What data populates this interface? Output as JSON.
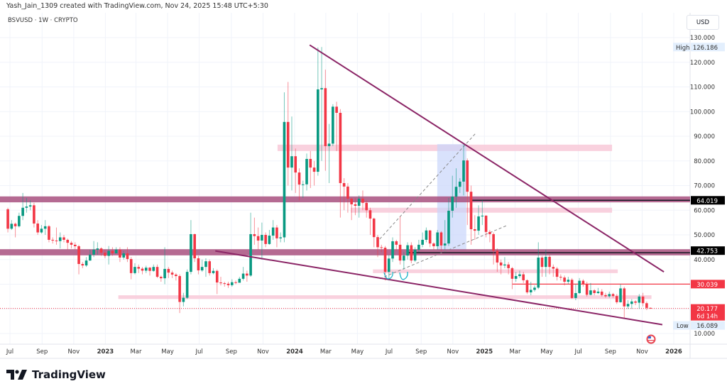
{
  "header": {
    "credit": "Yash_Jain_1309 created with TradingView.com, Nov 24, 2025 15:48 UTC+5:30",
    "symbol": "BSVUSD · 1W · CRYPTO",
    "currency_button": "USD"
  },
  "footer": {
    "brand": "TradingView"
  },
  "icons": {
    "logo": "tradingview-logo-icon",
    "event_marker": "us-flag-icon"
  },
  "colors": {
    "up": "#089981",
    "down": "#f23645",
    "band": "#a8507f",
    "zone": "#f8c9d8",
    "trendline": "#8b2566",
    "selection": "#c9d6fb",
    "last_price": "#f23645"
  },
  "chart_data": {
    "type": "candlestick",
    "interval": "1W",
    "first_candle": "2022-06-27",
    "last_candle": "2025-11-17",
    "ylim": [
      5,
      135
    ],
    "y_ticks": [
      "130.000",
      "120.000",
      "110.000",
      "100.000",
      "90.000",
      "80.000",
      "70.000",
      "60.000",
      "50.000",
      "40.000",
      "10.000"
    ],
    "y_tick_values": [
      130,
      120,
      110,
      100,
      90,
      80,
      70,
      60,
      50,
      40,
      10
    ],
    "x_ticks": [
      {
        "label": "Jul",
        "date": "2022-07-01"
      },
      {
        "label": "Sep",
        "date": "2022-09-01"
      },
      {
        "label": "Nov",
        "date": "2022-11-01"
      },
      {
        "label": "2023",
        "date": "2023-01-01",
        "bold": true
      },
      {
        "label": "Mar",
        "date": "2023-03-01"
      },
      {
        "label": "May",
        "date": "2023-05-01"
      },
      {
        "label": "Jul",
        "date": "2023-07-01"
      },
      {
        "label": "Sep",
        "date": "2023-09-01"
      },
      {
        "label": "Nov",
        "date": "2023-11-01"
      },
      {
        "label": "2024",
        "date": "2024-01-01",
        "bold": true
      },
      {
        "label": "Mar",
        "date": "2024-03-01"
      },
      {
        "label": "May",
        "date": "2024-05-01"
      },
      {
        "label": "Jul",
        "date": "2024-07-01"
      },
      {
        "label": "Sep",
        "date": "2024-09-01"
      },
      {
        "label": "Nov",
        "date": "2024-11-01"
      },
      {
        "label": "2025",
        "date": "2025-01-01",
        "bold": true
      },
      {
        "label": "Mar",
        "date": "2025-03-01"
      },
      {
        "label": "May",
        "date": "2025-05-01"
      },
      {
        "label": "Jul",
        "date": "2025-07-01"
      },
      {
        "label": "Sep",
        "date": "2025-09-01"
      },
      {
        "label": "Nov",
        "date": "2025-11-01"
      },
      {
        "label": "2026",
        "date": "2026-01-01",
        "bold": true
      }
    ],
    "ohlc": [
      [
        60.4,
        61,
        51,
        52.5
      ],
      [
        52.5,
        56,
        52,
        54.5
      ],
      [
        54.5,
        55,
        49,
        53.5
      ],
      [
        53.5,
        59,
        53,
        57.7
      ],
      [
        57.7,
        67,
        56,
        61
      ],
      [
        61,
        65,
        59,
        61.5
      ],
      [
        61.5,
        64,
        60,
        62
      ],
      [
        62,
        63,
        53,
        54.6
      ],
      [
        54.6,
        56,
        50,
        51
      ],
      [
        51,
        54,
        50.5,
        52.5
      ],
      [
        52.5,
        56,
        50,
        53.5
      ],
      [
        53.5,
        54,
        47,
        48
      ],
      [
        48,
        49,
        46.5,
        47.7
      ],
      [
        47.7,
        53,
        46,
        47.5
      ],
      [
        47.5,
        51,
        44.5,
        49
      ],
      [
        49,
        50,
        47,
        48
      ],
      [
        48,
        48.5,
        44,
        46.8
      ],
      [
        46.8,
        47.5,
        44.5,
        46
      ],
      [
        46,
        47,
        44,
        45.4
      ],
      [
        45.4,
        46,
        34,
        38.2
      ],
      [
        38.2,
        39,
        36.5,
        37.6
      ],
      [
        37.6,
        41,
        37,
        39.6
      ],
      [
        39.6,
        44,
        39.5,
        42
      ],
      [
        42,
        47.5,
        41,
        44
      ],
      [
        44,
        47,
        42,
        44.5
      ],
      [
        44.5,
        45,
        41.5,
        42.8
      ],
      [
        42.8,
        44,
        40.5,
        41.5
      ],
      [
        41.5,
        45.5,
        38,
        43.5
      ],
      [
        43.5,
        45,
        41.5,
        42.5
      ],
      [
        42.5,
        45,
        43,
        44
      ],
      [
        44,
        45,
        39,
        40.8
      ],
      [
        40.8,
        43.5,
        40,
        42.5
      ],
      [
        42.5,
        45,
        39,
        40.2
      ],
      [
        40.2,
        41,
        32,
        34.5
      ],
      [
        34.5,
        38.5,
        34,
        37
      ],
      [
        37,
        38,
        34.5,
        36.3
      ],
      [
        36.3,
        37,
        34,
        35.5
      ],
      [
        35.5,
        37.5,
        34.5,
        36.7
      ],
      [
        36.7,
        37,
        33.5,
        35.4
      ],
      [
        35.4,
        38,
        35,
        37
      ],
      [
        37,
        38,
        32.5,
        33
      ],
      [
        33,
        33.5,
        31,
        32.4
      ],
      [
        32.4,
        45,
        30,
        36.2
      ],
      [
        36.2,
        37,
        32.5,
        34.7
      ],
      [
        34.7,
        35.5,
        32.5,
        33.9
      ],
      [
        33.9,
        34.5,
        31.5,
        33.3
      ],
      [
        33.3,
        34,
        18.3,
        22.8
      ],
      [
        22.8,
        26.5,
        21,
        24.5
      ],
      [
        24.5,
        36,
        24,
        35
      ],
      [
        35,
        56,
        34,
        50.3
      ],
      [
        50.3,
        50.5,
        39,
        40.5
      ],
      [
        40.5,
        41.5,
        34,
        35.6
      ],
      [
        35.6,
        40,
        35,
        37
      ],
      [
        37,
        40.5,
        33,
        39.3
      ],
      [
        39.3,
        40,
        33.5,
        34.5
      ],
      [
        34.5,
        36.5,
        34,
        35.4
      ],
      [
        35.4,
        36,
        26,
        30.7
      ],
      [
        30.7,
        33,
        29.5,
        30.4
      ],
      [
        30.4,
        31,
        29,
        30.2
      ],
      [
        30.2,
        31,
        28.5,
        29.6
      ],
      [
        29.6,
        32,
        29,
        30.8
      ],
      [
        30.8,
        31.5,
        30,
        30.6
      ],
      [
        30.6,
        33,
        31,
        32.2
      ],
      [
        32.2,
        37,
        31.5,
        34.3
      ],
      [
        34.3,
        35.5,
        31,
        33.5
      ],
      [
        33.5,
        59,
        33,
        50.3
      ],
      [
        50.3,
        57,
        46,
        49.5
      ],
      [
        49.5,
        53,
        44,
        47.7
      ],
      [
        47.7,
        55,
        40,
        50
      ],
      [
        50,
        51,
        45,
        46.3
      ],
      [
        46.3,
        52,
        46,
        49.7
      ],
      [
        49.7,
        56,
        48,
        53
      ],
      [
        53,
        54,
        45,
        48.6
      ],
      [
        48.6,
        51,
        47,
        49
      ],
      [
        49,
        107.8,
        47,
        95.8
      ],
      [
        95.8,
        112,
        70,
        77.3
      ],
      [
        77.3,
        98,
        68,
        81.9
      ],
      [
        81.9,
        85,
        67,
        75.3
      ],
      [
        75.3,
        77,
        64,
        70.4
      ],
      [
        70.4,
        72,
        65,
        70.5
      ],
      [
        70.5,
        83,
        68,
        80.8
      ],
      [
        80.8,
        84,
        69,
        77.3
      ],
      [
        77.3,
        80,
        70,
        75.6
      ],
      [
        75.6,
        126,
        74,
        109
      ],
      [
        109,
        126.186,
        80,
        109.5
      ],
      [
        109.5,
        117,
        76,
        86
      ],
      [
        86,
        95,
        71,
        87
      ],
      [
        87,
        103,
        86,
        102
      ],
      [
        102,
        104,
        84,
        99.5
      ],
      [
        99.5,
        101,
        57,
        71
      ],
      [
        71,
        73,
        60,
        69.6
      ],
      [
        69.6,
        71,
        59,
        64.7
      ],
      [
        64.7,
        65,
        56,
        62.4
      ],
      [
        62.4,
        65,
        58,
        61.8
      ],
      [
        61.8,
        66,
        57,
        64.7
      ],
      [
        64.7,
        68,
        60,
        63
      ],
      [
        63,
        64,
        57,
        60
      ],
      [
        60,
        61,
        50,
        56.6
      ],
      [
        56.6,
        57,
        45,
        49.1
      ],
      [
        49.1,
        50,
        41,
        45
      ],
      [
        45,
        46,
        43,
        44.8
      ],
      [
        44.8,
        45.5,
        31.5,
        35
      ],
      [
        35,
        42,
        31.5,
        40.4
      ],
      [
        40.4,
        49,
        39,
        47.4
      ],
      [
        47.4,
        48,
        43.5,
        46
      ],
      [
        46,
        57.5,
        38,
        39.6
      ],
      [
        39.6,
        43,
        36,
        41.6
      ],
      [
        41.6,
        47,
        40,
        45.8
      ],
      [
        45.8,
        47,
        38.5,
        39.6
      ],
      [
        39.6,
        45,
        39,
        44
      ],
      [
        44,
        48,
        43,
        46
      ],
      [
        46,
        51,
        45,
        48
      ],
      [
        48,
        53,
        47,
        51.8
      ],
      [
        51.8,
        52,
        45,
        46.5
      ],
      [
        46.5,
        47,
        44,
        45.4
      ],
      [
        45.4,
        52,
        44,
        51
      ],
      [
        51,
        51.5,
        43.5,
        45.7
      ],
      [
        45.7,
        56,
        44,
        46.5
      ],
      [
        46.5,
        65,
        45.5,
        59.8
      ],
      [
        59.8,
        74,
        57,
        65.5
      ],
      [
        65.5,
        77,
        61,
        69.5
      ],
      [
        69.5,
        73,
        67,
        71.6
      ],
      [
        71.6,
        87,
        66,
        80.2
      ],
      [
        80.2,
        81,
        54,
        67.5
      ],
      [
        67.5,
        70,
        46,
        52.3
      ],
      [
        52.3,
        58,
        48,
        51.7
      ],
      [
        51.7,
        62,
        50,
        57.5
      ],
      [
        57.5,
        64,
        54,
        57.8
      ],
      [
        57.8,
        58,
        49,
        51.2
      ],
      [
        51.2,
        52,
        47,
        50.3
      ],
      [
        50.3,
        51,
        38,
        43.6
      ],
      [
        43.6,
        44.5,
        35,
        38.8
      ],
      [
        38.8,
        40,
        34,
        37.6
      ],
      [
        37.6,
        41,
        36.5,
        38
      ],
      [
        38,
        39,
        34,
        36.5
      ],
      [
        36.5,
        37,
        28,
        32.2
      ],
      [
        32.2,
        35,
        31,
        33.3
      ],
      [
        33.3,
        35.5,
        32.5,
        34
      ],
      [
        34,
        35,
        30.5,
        31.6
      ],
      [
        31.6,
        32,
        26,
        26.7
      ],
      [
        26.7,
        31,
        25.5,
        27.7
      ],
      [
        27.7,
        29.5,
        27,
        28.6
      ],
      [
        28.6,
        47,
        28,
        40.8
      ],
      [
        40.8,
        41.5,
        33,
        37
      ],
      [
        37,
        44,
        33,
        41.1
      ],
      [
        41.1,
        42,
        34,
        37
      ],
      [
        37,
        38,
        33,
        36.3
      ],
      [
        36.3,
        37,
        31.5,
        33
      ],
      [
        33,
        34,
        31.5,
        32.7
      ],
      [
        32.7,
        33.5,
        29.5,
        31
      ],
      [
        31,
        33,
        30,
        31.8
      ],
      [
        31.8,
        32.5,
        24,
        24.4
      ],
      [
        24.4,
        30,
        23.5,
        26.4
      ],
      [
        26.4,
        32.5,
        26,
        31.4
      ],
      [
        31.4,
        32,
        29,
        30
      ],
      [
        30,
        31,
        25,
        25.7
      ],
      [
        25.7,
        30.5,
        25.5,
        27.5
      ],
      [
        27.5,
        28,
        25.5,
        26.4
      ],
      [
        26.4,
        28.5,
        26,
        27
      ],
      [
        27,
        28,
        25,
        25.6
      ],
      [
        25.6,
        26.5,
        24.5,
        25.1
      ],
      [
        25.1,
        27,
        24.5,
        26
      ],
      [
        26,
        26.5,
        24.5,
        25.2
      ],
      [
        25.2,
        26,
        22,
        22.7
      ],
      [
        22.7,
        30,
        22.5,
        28.3
      ],
      [
        28.3,
        29,
        16.089,
        21
      ],
      [
        21,
        23.5,
        20,
        22
      ],
      [
        22,
        24,
        20,
        23
      ],
      [
        23,
        23.5,
        21.5,
        22.5
      ],
      [
        22.5,
        26,
        20,
        25
      ],
      [
        25,
        26.5,
        21,
        22.3
      ],
      [
        22.3,
        23,
        19.5,
        20.4
      ],
      [
        20.4,
        20.6,
        20,
        20.177
      ]
    ],
    "horizontal_bands": [
      {
        "from": 63.2,
        "to": 65.6,
        "level": 64.019,
        "level_line_start": "2024-12-08"
      },
      {
        "from": 41.7,
        "to": 44.2,
        "level": 42.753,
        "level_line_start": "2024-08-07"
      }
    ],
    "zones": [
      {
        "from": 84,
        "to": 86.6,
        "start": "2023-11-29",
        "end": "2025-09-04"
      },
      {
        "from": 59,
        "to": 61,
        "start": "2024-04-18",
        "end": "2025-09-04"
      },
      {
        "from": 34.5,
        "to": 36,
        "start": "2024-05-31",
        "end": "2025-09-15"
      },
      {
        "from": 24,
        "to": 25.5,
        "start": "2023-01-26",
        "end": "2025-11-19"
      }
    ],
    "horizontal_rays": [
      {
        "level": 30.039,
        "start": "2025-02-24"
      }
    ],
    "trendlines": [
      {
        "start": "2024-01-30",
        "v1": 127,
        "end": "2025-12-13",
        "v2": 35
      },
      {
        "start": "2023-08-01",
        "v1": 43.5,
        "end": "2025-12-10",
        "v2": 13.6
      }
    ],
    "channel": [
      {
        "start": "2024-06-13",
        "v1": 48.3,
        "end": "2024-12-15",
        "v2": 91.2
      },
      {
        "start": "2024-06-13",
        "v1": 32.2,
        "end": "2025-02-12",
        "v2": 53.7
      }
    ],
    "date_range_box": {
      "start": "2024-10-02",
      "end": "2024-11-27",
      "from": 43.7,
      "to": 86.8
    },
    "price_labels": {
      "high_label": "High",
      "high": "126.186",
      "low_label": "Low",
      "low": "16.089",
      "band1": "64.019",
      "band2": "42.753",
      "ray": "30.039",
      "last": "20.177",
      "countdown": "6d 14h"
    }
  }
}
